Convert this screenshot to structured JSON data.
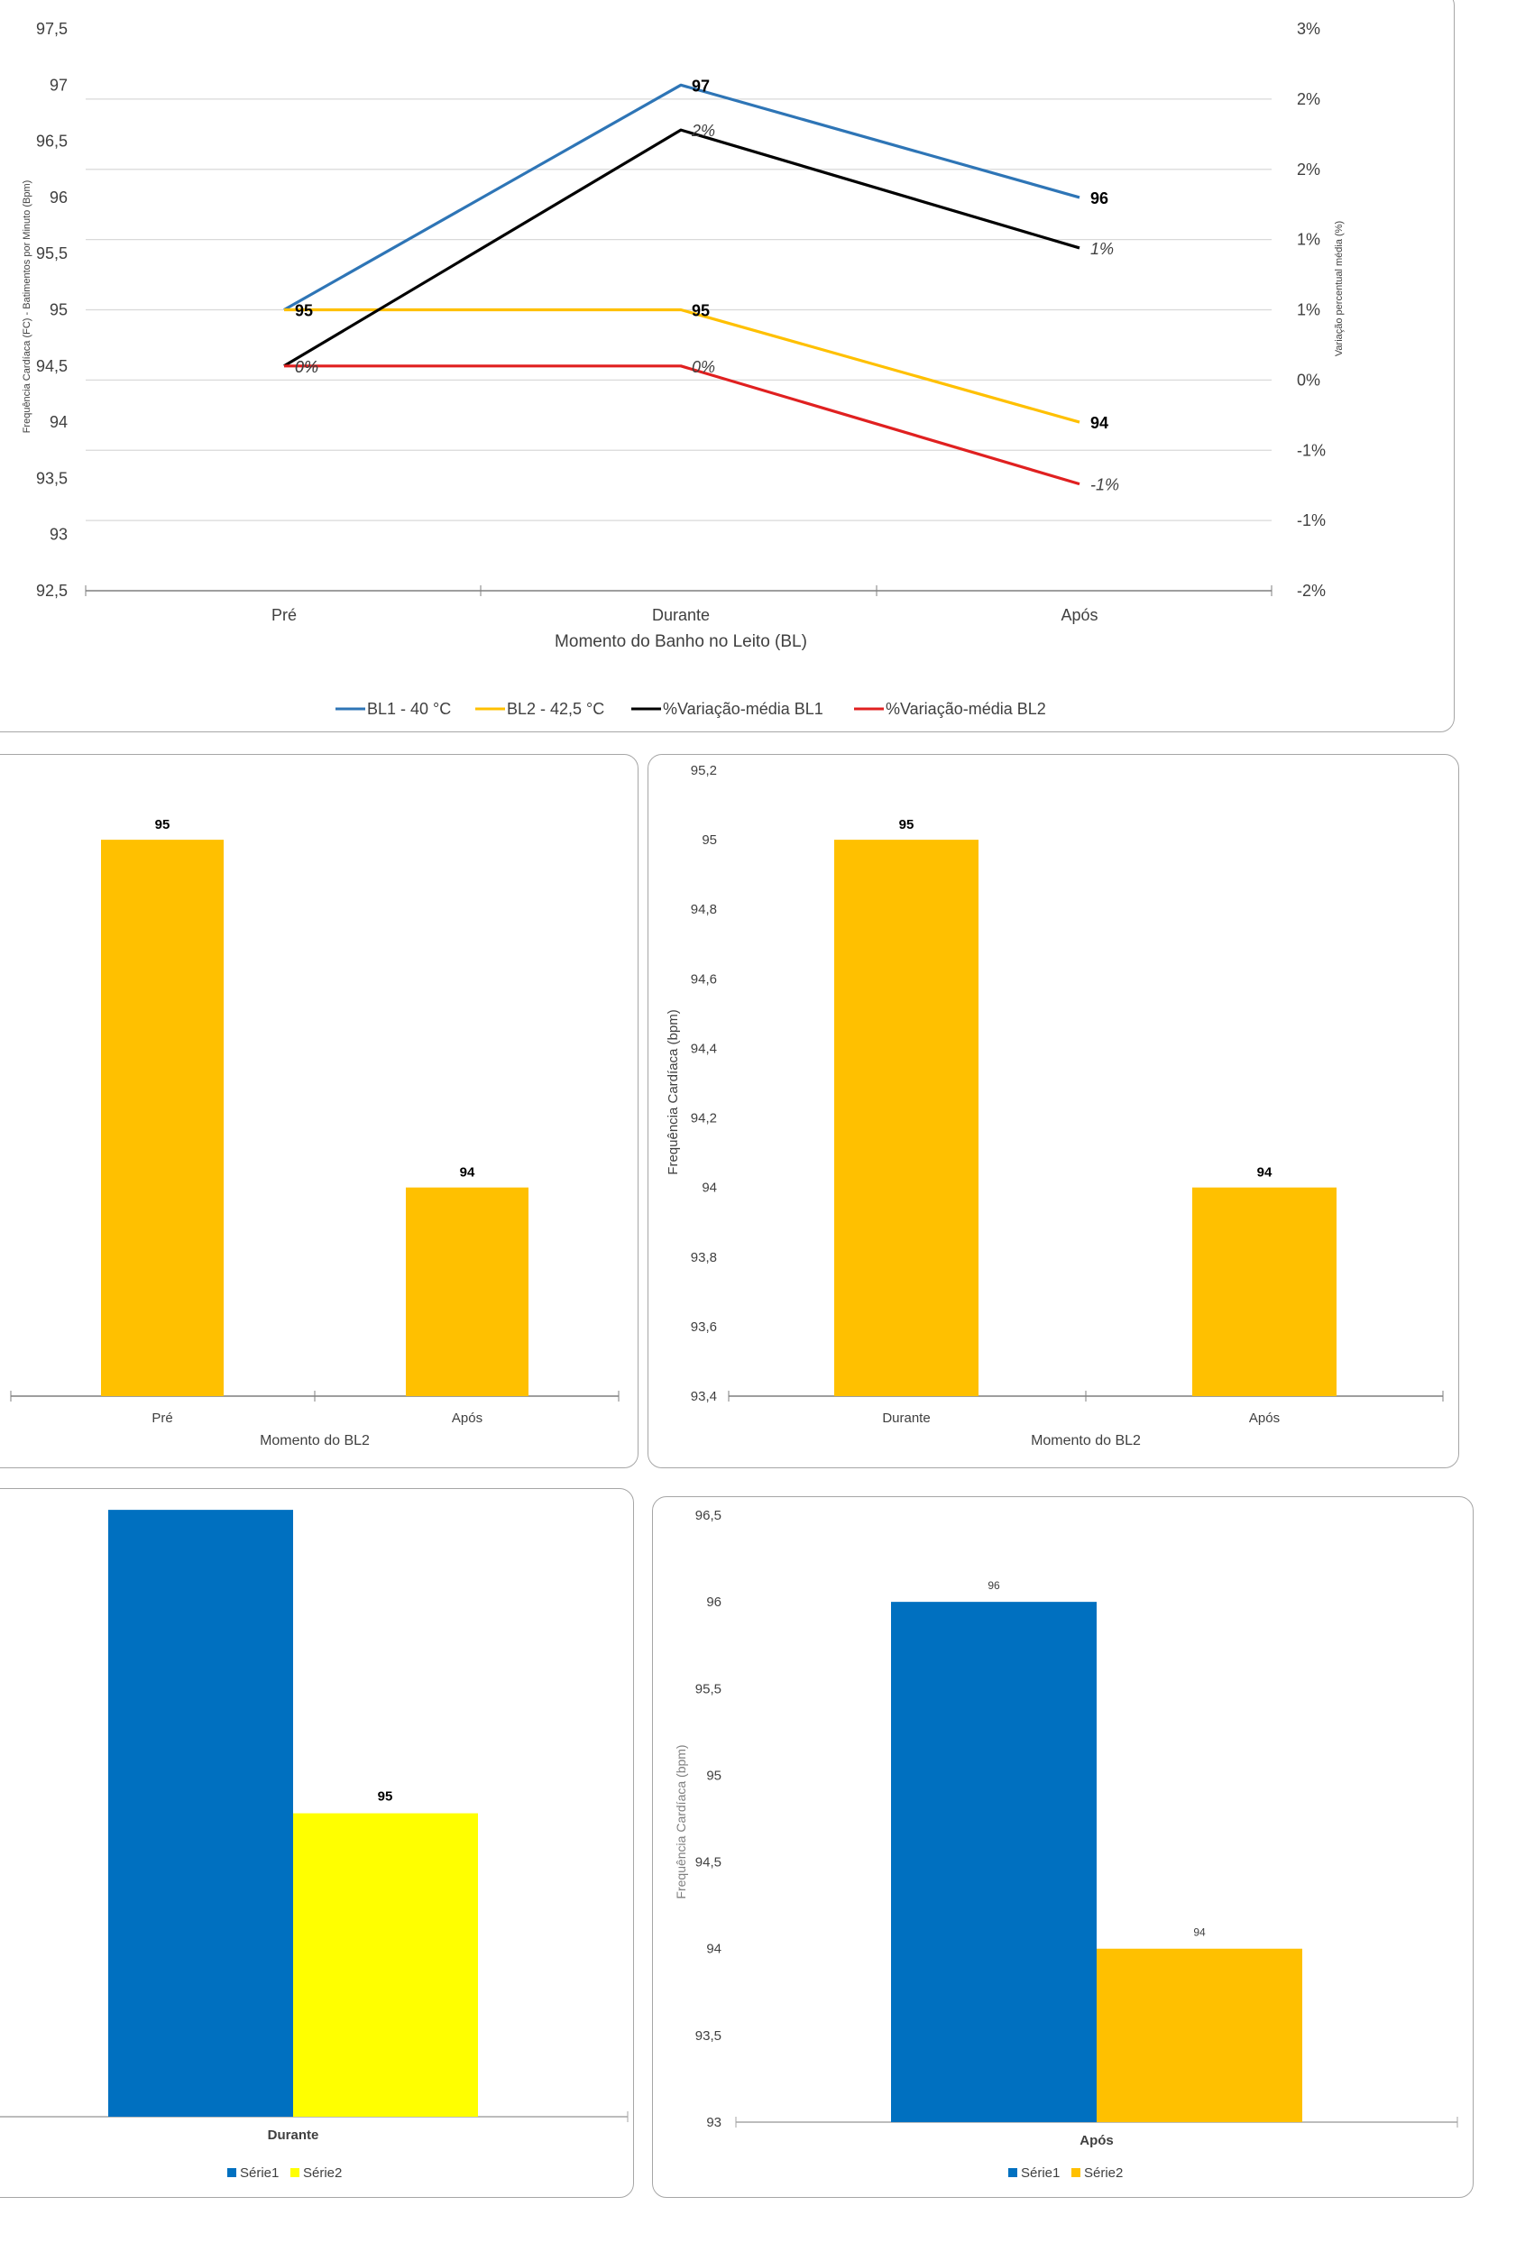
{
  "colors": {
    "bl1": "#2e75b6",
    "bl2": "#ffc000",
    "var_bl1": "#000000",
    "var_bl2": "#e02020",
    "serie1": "#0070c0",
    "serie2_yellow": "#ffff00",
    "serie2_orange": "#ffc000",
    "grid": "#d9d9d9",
    "axis": "#7f7f7f",
    "text": "#404040"
  },
  "chart_data": [
    {
      "id": "main",
      "type": "line",
      "categories": [
        "Pré",
        "Durante",
        "Após"
      ],
      "xlabel": "Momento do Banho no Leito (BL)",
      "ylabel": "Frequência Cardíaca (FC) - Batimentos por Minuto (Bpm)",
      "y2label": "Variação percentual média (%)",
      "ylim": [
        92.5,
        97.5
      ],
      "y2lim": [
        -2,
        3
      ],
      "yticks": [
        "97,5",
        "97",
        "96,5",
        "96",
        "95,5",
        "95",
        "94,5",
        "94",
        "93,5",
        "93",
        "92,5"
      ],
      "y2ticks": [
        "3%",
        "2%",
        "2%",
        "1%",
        "1%",
        "0%",
        "-1%",
        "-1%",
        "-2%"
      ],
      "series": [
        {
          "name": "BL1 - 40 °C",
          "axis": "left",
          "values": [
            95,
            97,
            96
          ],
          "labels": [
            "",
            "97",
            "96"
          ]
        },
        {
          "name": "BL2 - 42,5 °C",
          "axis": "left",
          "values": [
            95,
            95,
            94
          ],
          "labels": [
            "95",
            "95",
            "94"
          ]
        },
        {
          "name": "%Variação-média BL1",
          "axis": "right",
          "values": [
            0,
            2.1,
            1.05
          ],
          "labels": [
            "0%",
            "2%",
            "1%"
          ]
        },
        {
          "name": "%Variação-média BL2",
          "axis": "right",
          "values": [
            0,
            0,
            -1.05
          ],
          "labels": [
            "0%",
            "0%",
            "-1%"
          ]
        }
      ],
      "legend_position": "bottom"
    },
    {
      "id": "bl2_pre_apos",
      "type": "bar",
      "categories": [
        "Pré",
        "Após"
      ],
      "values": [
        95,
        94
      ],
      "labels": [
        "95",
        "94"
      ],
      "xlabel": "Momento do BL2",
      "ylim": [
        93.4,
        95.2
      ]
    },
    {
      "id": "bl2_durante_apos",
      "type": "bar",
      "categories": [
        "Durante",
        "Após"
      ],
      "values": [
        95,
        94
      ],
      "labels": [
        "95",
        "94"
      ],
      "xlabel": "Momento do BL2",
      "ylabel": "Frequência Cardíaca (bpm)",
      "ylim": [
        93.4,
        95.2
      ],
      "yticks": [
        "95,2",
        "95",
        "94,8",
        "94,6",
        "94,4",
        "94,2",
        "94",
        "93,8",
        "93,6",
        "93,4"
      ]
    },
    {
      "id": "durante_series",
      "type": "bar",
      "categories": [
        "Durante"
      ],
      "series": [
        {
          "name": "Série1",
          "values": [
            97
          ]
        },
        {
          "name": "Série2",
          "values": [
            95
          ],
          "label": "95"
        }
      ],
      "ylim": [
        93,
        97.5
      ],
      "legend": [
        "Série1",
        "Série2"
      ],
      "legend_position": "bottom"
    },
    {
      "id": "apos_series",
      "type": "bar",
      "categories": [
        "Após"
      ],
      "series": [
        {
          "name": "Série1",
          "values": [
            96
          ],
          "label": "96"
        },
        {
          "name": "Série2",
          "values": [
            94
          ],
          "label": "94"
        }
      ],
      "ylabel": "Frequência Cardíaca (bpm)",
      "ylim": [
        93,
        96.5
      ],
      "yticks": [
        "96,5",
        "96",
        "95,5",
        "95",
        "94,5",
        "94",
        "93,5",
        "93"
      ],
      "legend": [
        "Série1",
        "Série2"
      ],
      "legend_position": "bottom"
    }
  ]
}
